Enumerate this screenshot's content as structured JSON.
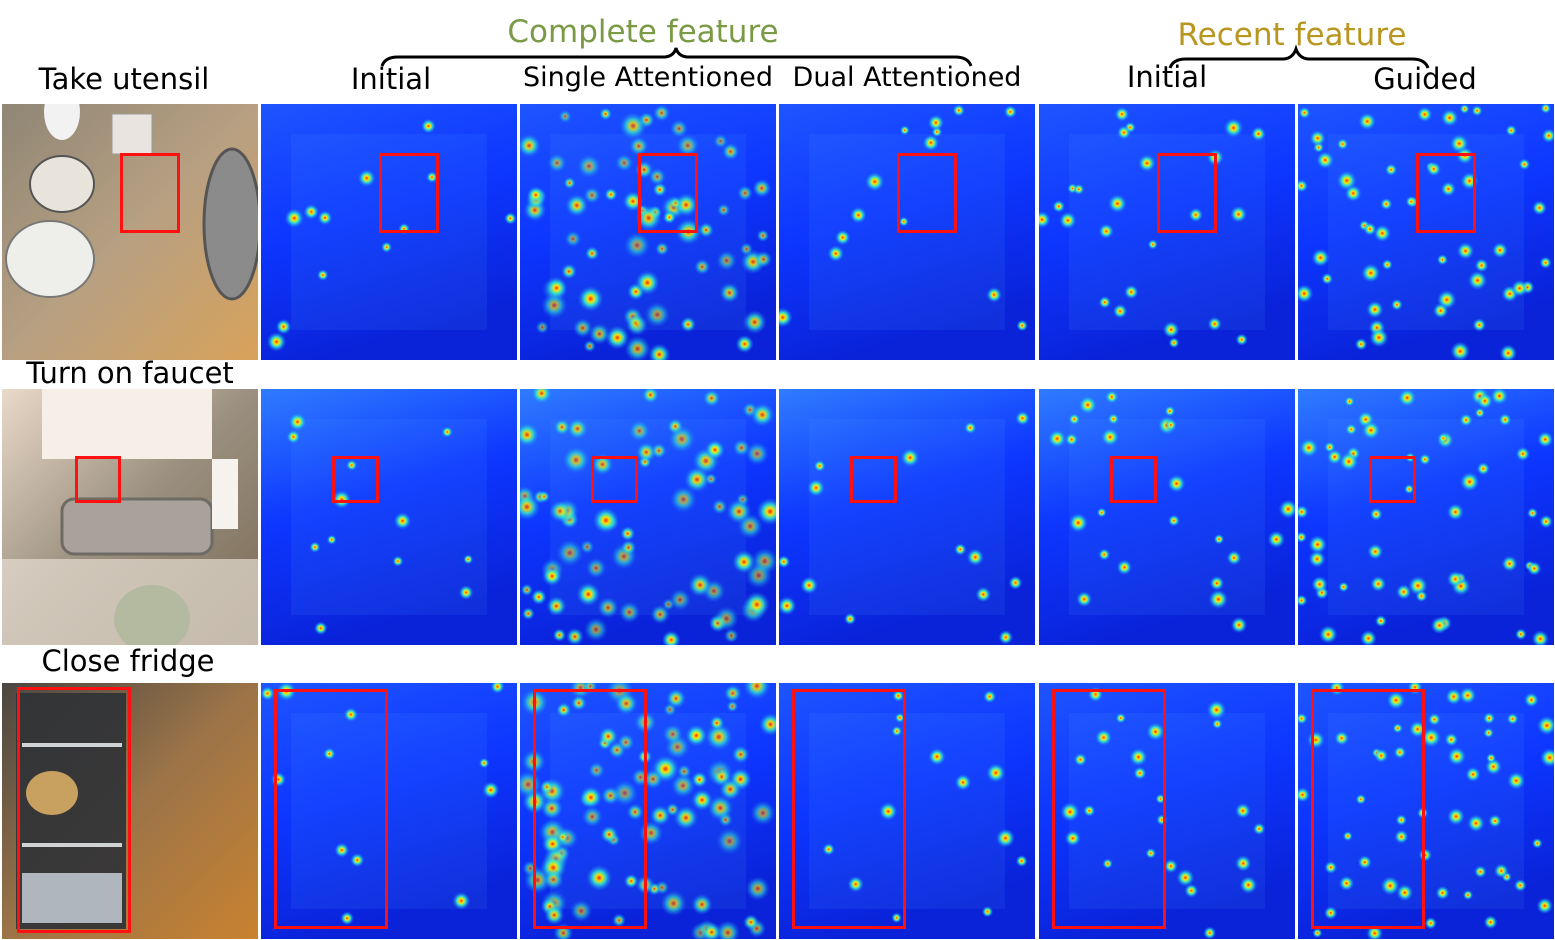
{
  "group_titles": {
    "complete": "Complete feature",
    "recent": "Recent feature"
  },
  "column_labels": [
    "Initial",
    "Single Attentioned",
    "Dual Attentioned",
    "Initial",
    "Guided"
  ],
  "rows": [
    {
      "label": "Take utensil"
    },
    {
      "label": "Turn on faucet"
    },
    {
      "label": "Close fridge"
    }
  ],
  "colors": {
    "complete_title": "#7a9a45",
    "recent_title": "#b8961f",
    "bbox": "#ff1111",
    "heatmap_base": "#0a2bff"
  }
}
